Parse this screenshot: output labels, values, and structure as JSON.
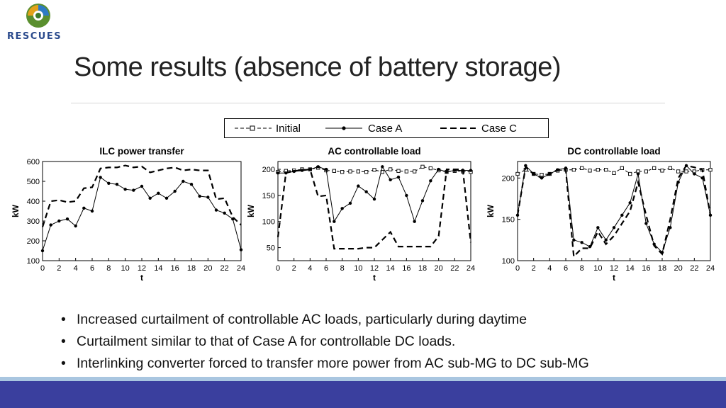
{
  "header": {
    "logo_text": "RESCUES",
    "title": "Some results (absence of battery storage)"
  },
  "legend": {
    "items": [
      {
        "label": "Initial",
        "style": "dash-square"
      },
      {
        "label": "Case A",
        "style": "solid-dot"
      },
      {
        "label": "Case C",
        "style": "dashed"
      }
    ]
  },
  "bullets": [
    "Increased curtailment of controllable AC loads, particularly during daytime",
    "Curtailment similar to that of Case A for controllable DC loads.",
    "Interlinking converter forced to transfer more power from AC sub-MG to DC sub-MG"
  ],
  "colors": {
    "footer_band": "#3a3f9e",
    "footer_stripe": "#a9c6e0",
    "logo_text": "#2a4a8c"
  },
  "chart_data": [
    {
      "type": "line",
      "title": "ILC power transfer",
      "xlabel": "t",
      "ylabel": "kW",
      "xlim": [
        0,
        24
      ],
      "ylim": [
        100,
        600
      ],
      "xticks": [
        "0",
        "2",
        "4",
        "6",
        "8",
        "10",
        "12",
        "14",
        "16",
        "18",
        "20",
        "22",
        "24"
      ],
      "yticks": [
        "100",
        "200",
        "300",
        "400",
        "500",
        "600"
      ],
      "x": [
        0,
        1,
        2,
        3,
        4,
        5,
        6,
        7,
        8,
        9,
        10,
        11,
        12,
        13,
        14,
        15,
        16,
        17,
        18,
        19,
        20,
        21,
        22,
        23,
        24
      ],
      "series": [
        {
          "name": "Case A",
          "values": [
            150,
            280,
            300,
            310,
            275,
            365,
            350,
            520,
            490,
            485,
            460,
            455,
            475,
            415,
            440,
            415,
            450,
            500,
            485,
            425,
            420,
            355,
            340,
            310,
            155
          ]
        },
        {
          "name": "Case C",
          "values": [
            270,
            400,
            405,
            395,
            400,
            465,
            470,
            565,
            570,
            570,
            580,
            570,
            575,
            545,
            555,
            565,
            570,
            555,
            560,
            555,
            555,
            410,
            415,
            320,
            280
          ]
        }
      ]
    },
    {
      "type": "line",
      "title": "AC controllable load",
      "xlabel": "t",
      "ylabel": "kW",
      "xlim": [
        0,
        24
      ],
      "ylim": [
        25,
        215
      ],
      "xticks": [
        "0",
        "2",
        "4",
        "6",
        "8",
        "10",
        "12",
        "14",
        "16",
        "18",
        "20",
        "22",
        "24"
      ],
      "yticks": [
        "50",
        "100",
        "150",
        "200"
      ],
      "x": [
        0,
        1,
        2,
        3,
        4,
        5,
        6,
        7,
        8,
        9,
        10,
        11,
        12,
        13,
        14,
        15,
        16,
        17,
        18,
        19,
        20,
        21,
        22,
        23,
        24
      ],
      "series": [
        {
          "name": "Initial",
          "values": [
            195,
            197,
            198,
            200,
            200,
            203,
            198,
            197,
            195,
            196,
            196,
            195,
            199,
            195,
            200,
            197,
            196,
            196,
            205,
            202,
            198,
            195,
            197,
            196,
            195
          ]
        },
        {
          "name": "Case A",
          "values": [
            193,
            193,
            196,
            198,
            200,
            205,
            200,
            100,
            125,
            135,
            168,
            157,
            143,
            205,
            180,
            185,
            150,
            100,
            140,
            178,
            200,
            195,
            198,
            198,
            198
          ]
        },
        {
          "name": "Case C",
          "values": [
            70,
            193,
            197,
            198,
            200,
            148,
            150,
            48,
            48,
            48,
            48,
            50,
            50,
            65,
            80,
            52,
            52,
            52,
            52,
            52,
            72,
            200,
            200,
            200,
            60
          ]
        }
      ]
    },
    {
      "type": "line",
      "title": "DC controllable load",
      "xlabel": "t",
      "ylabel": "kW",
      "xlim": [
        0,
        24
      ],
      "ylim": [
        100,
        220
      ],
      "xticks": [
        "0",
        "2",
        "4",
        "6",
        "8",
        "10",
        "12",
        "14",
        "16",
        "18",
        "20",
        "22",
        "24"
      ],
      "yticks": [
        "100",
        "150",
        "200"
      ],
      "x": [
        0,
        1,
        2,
        3,
        4,
        5,
        6,
        7,
        8,
        9,
        10,
        11,
        12,
        13,
        14,
        15,
        16,
        17,
        18,
        19,
        20,
        21,
        22,
        23,
        24
      ],
      "series": [
        {
          "name": "Initial",
          "values": [
            205,
            210,
            205,
            204,
            205,
            209,
            210,
            210,
            212,
            209,
            210,
            210,
            206,
            212,
            205,
            208,
            208,
            212,
            209,
            212,
            208,
            208,
            208,
            210,
            210
          ]
        },
        {
          "name": "Case A",
          "values": [
            155,
            215,
            205,
            200,
            205,
            210,
            212,
            125,
            122,
            117,
            140,
            125,
            140,
            155,
            170,
            205,
            145,
            120,
            110,
            140,
            195,
            215,
            205,
            200,
            155
          ]
        },
        {
          "name": "Case C",
          "values": [
            155,
            213,
            205,
            200,
            205,
            210,
            210,
            105,
            115,
            115,
            135,
            120,
            130,
            145,
            160,
            195,
            155,
            118,
            108,
            150,
            200,
            215,
            213,
            210,
            155
          ]
        }
      ]
    }
  ]
}
